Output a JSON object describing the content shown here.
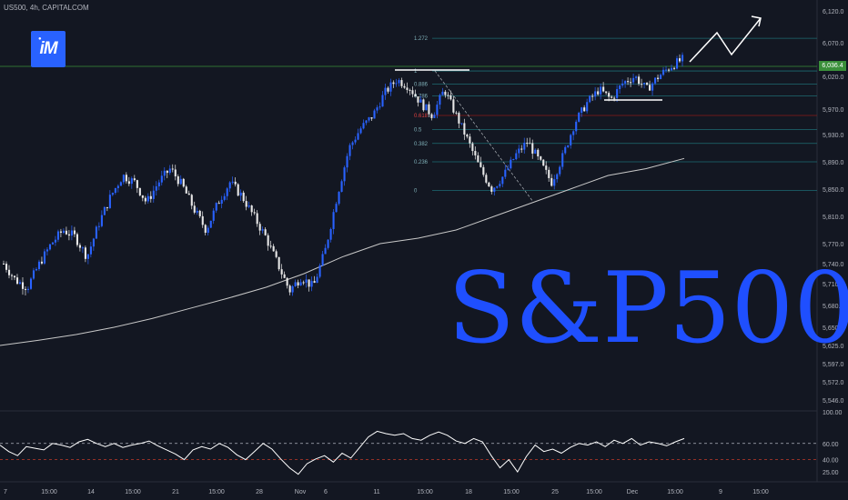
{
  "header": {
    "symbol_line": "US500, 4h, CAPITALCOM"
  },
  "logo": {
    "text": "iM"
  },
  "overlay": {
    "big_title": "S&P500"
  },
  "colors": {
    "background": "#131722",
    "candle_up": "#2962ff",
    "candle_down": "#e8e8e8",
    "moving_average": "#c8c8c8",
    "fib_line": "#1e6b73",
    "fib_618": "#8b1a1a",
    "rsi_line": "#ffffff",
    "title": "#1f4fff",
    "price_tag": "#3a8f3a"
  },
  "chart_data": [
    {
      "type": "line",
      "name_hint": "price",
      "y_axis_ticks": [
        "6,120.0",
        "6,070.0",
        "6,020.0",
        "5,970.0",
        "5,930.0",
        "5,890.0",
        "5,850.0",
        "5,810.0",
        "5,770.0",
        "5,740.0",
        "5,710.0",
        "5,680.0",
        "5,650.0",
        "5,625.0",
        "5,597.0",
        "5,572.0",
        "5,546.0"
      ],
      "y_axis_values": [
        6120,
        6070,
        6020,
        5970,
        5930,
        5890,
        5850,
        5810,
        5770,
        5740,
        5710,
        5680,
        5650,
        5625,
        5597,
        5572,
        5546
      ],
      "x_axis_ticks": [
        "7",
        "15:00",
        "14",
        "15:00",
        "21",
        "15:00",
        "28",
        "Nov",
        "6",
        "11",
        "15:00",
        "18",
        "15:00",
        "25",
        "15:00",
        "Dec",
        "15:00",
        "9",
        "15:00"
      ],
      "current_price_label": "6,036.4",
      "close_path": [
        5740,
        5715,
        5705,
        5740,
        5770,
        5790,
        5780,
        5750,
        5800,
        5840,
        5870,
        5860,
        5830,
        5860,
        5880,
        5855,
        5820,
        5790,
        5830,
        5860,
        5840,
        5810,
        5780,
        5740,
        5700,
        5720,
        5705,
        5760,
        5840,
        5910,
        5940,
        5960,
        5995,
        6015,
        6005,
        5980,
        5960,
        6000,
        5960,
        5920,
        5880,
        5850,
        5870,
        5900,
        5920,
        5890,
        5860,
        5900,
        5950,
        5980,
        6000,
        5985,
        6010,
        6020,
        6000,
        6020,
        6035,
        6045
      ],
      "moving_average": [
        5625,
        5632,
        5640,
        5650,
        5662,
        5676,
        5690,
        5705,
        5725,
        5750,
        5770,
        5778,
        5790,
        5810,
        5830,
        5850,
        5870,
        5880,
        5895
      ],
      "fibonacci_levels": [
        {
          "label": "1.272",
          "value": 6077
        },
        {
          "label": "1",
          "value": 6028
        },
        {
          "label": "0.886",
          "value": 6008
        },
        {
          "label": "0.786",
          "value": 5990
        },
        {
          "label": "0.618",
          "value": 5960
        },
        {
          "label": "0.5",
          "value": 5938
        },
        {
          "label": "0.382",
          "value": 5917
        },
        {
          "label": "0.236",
          "value": 5890
        },
        {
          "label": "0",
          "value": 5848
        }
      ]
    },
    {
      "type": "line",
      "name_hint": "oscillator",
      "y_axis_ticks": [
        "100.00",
        "60.00",
        "40.00",
        "25.00"
      ],
      "y_axis_values": [
        100,
        60,
        40,
        25
      ],
      "ylim": [
        15,
        100
      ],
      "levels": [
        60,
        40
      ],
      "values": [
        58,
        50,
        45,
        56,
        54,
        52,
        60,
        58,
        55,
        62,
        65,
        60,
        56,
        60,
        55,
        58,
        60,
        63,
        57,
        52,
        47,
        40,
        52,
        56,
        53,
        60,
        55,
        46,
        40,
        50,
        60,
        53,
        41,
        30,
        22,
        35,
        41,
        45,
        37,
        48,
        42,
        55,
        68,
        75,
        72,
        70,
        72,
        66,
        64,
        70,
        74,
        70,
        63,
        60,
        66,
        62,
        45,
        30,
        40,
        25,
        44,
        58,
        50,
        53,
        48,
        55,
        60,
        58,
        62,
        56,
        64,
        60,
        66,
        58,
        62,
        60,
        57,
        62,
        66
      ]
    }
  ]
}
